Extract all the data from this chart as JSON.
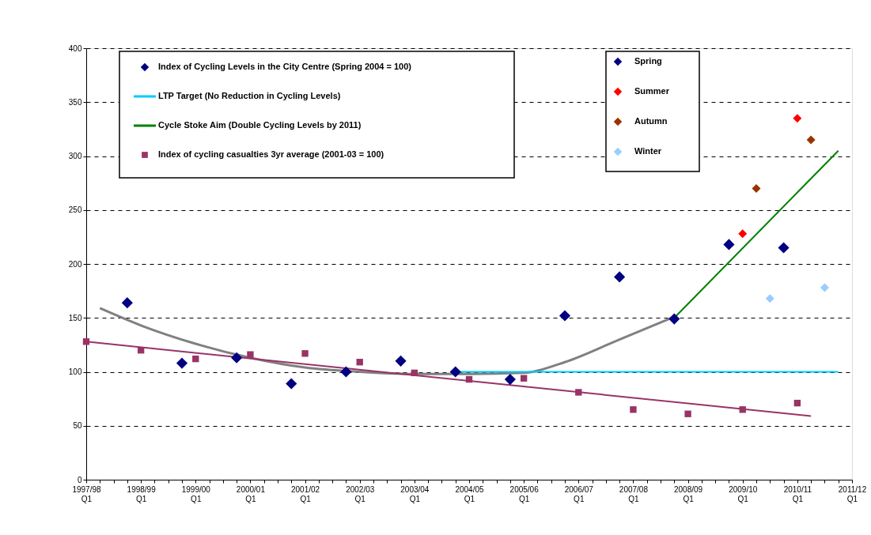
{
  "chart_data": {
    "type": "scatter",
    "categories": [
      "1997/98 Q1",
      null,
      null,
      null,
      "1998/99 Q1",
      null,
      null,
      null,
      "1999/00 Q1",
      null,
      null,
      null,
      "2000/01 Q1",
      null,
      null,
      null,
      "2001/02 Q1",
      null,
      null,
      null,
      "2002/03 Q1",
      null,
      null,
      null,
      "2003/04 Q1",
      null,
      null,
      null,
      "2004/05 Q1",
      null,
      null,
      null,
      "2005/06 Q1",
      null,
      null,
      null,
      "2006/07 Q1",
      null,
      null,
      null,
      "2007/08 Q1",
      null,
      null,
      null,
      "2008/09 Q1",
      null,
      null,
      null,
      "2009/10 Q1",
      null,
      null,
      null,
      "2010/11 Q1",
      null,
      null,
      null,
      "2011/12 Q1"
    ],
    "ylim": [
      0,
      400
    ],
    "yticks": [
      0,
      50,
      100,
      150,
      200,
      250,
      300,
      350,
      400
    ],
    "grid": "y",
    "legend": "top",
    "series": [
      {
        "name": "Index of Cycling Levels in the City Centre (Spring 2004 = 100)",
        "marker": "diamond",
        "color": "#000080",
        "values": [
          null,
          null,
          null,
          164,
          null,
          null,
          null,
          108,
          null,
          null,
          null,
          113,
          null,
          null,
          null,
          89,
          null,
          null,
          null,
          100,
          null,
          null,
          null,
          110,
          null,
          null,
          null,
          100,
          null,
          null,
          null,
          93,
          null,
          null,
          null,
          152,
          null,
          null,
          null,
          188,
          null,
          null,
          null,
          149,
          null,
          null,
          null,
          null,
          null,
          null,
          null,
          null,
          null,
          null,
          null,
          null,
          null
        ]
      },
      {
        "name": "LTP Target (No Reduction in Cycling Levels)",
        "type": "line",
        "marker": "none",
        "color": "#00ccff",
        "values": [
          null,
          null,
          null,
          null,
          null,
          null,
          null,
          null,
          null,
          null,
          null,
          null,
          null,
          null,
          null,
          null,
          null,
          null,
          null,
          null,
          null,
          null,
          null,
          null,
          null,
          null,
          null,
          100,
          100,
          100,
          100,
          100,
          100,
          100,
          100,
          100,
          100,
          100,
          100,
          100,
          100,
          100,
          100,
          100,
          100,
          100,
          100,
          100,
          100,
          100,
          100,
          100,
          100,
          100,
          100,
          100,
          null
        ]
      },
      {
        "name": "Cycle Stoke Aim (Double Cycling Levels by 2011)",
        "type": "line",
        "marker": "none",
        "color": "#008000",
        "values": [
          null,
          null,
          null,
          null,
          null,
          null,
          null,
          null,
          null,
          null,
          null,
          null,
          null,
          null,
          null,
          null,
          null,
          null,
          null,
          null,
          null,
          null,
          null,
          null,
          null,
          null,
          null,
          null,
          null,
          null,
          null,
          null,
          null,
          null,
          null,
          null,
          null,
          null,
          null,
          null,
          null,
          null,
          null,
          150,
          null,
          null,
          null,
          null,
          null,
          null,
          null,
          null,
          null,
          null,
          null,
          305,
          null
        ]
      },
      {
        "name": "Index of cycling casualties 3yr average (2001-03 = 100)",
        "marker": "square",
        "color": "#993366",
        "values": [
          128,
          null,
          null,
          null,
          120,
          null,
          null,
          null,
          112,
          null,
          null,
          null,
          116,
          null,
          null,
          null,
          117,
          null,
          null,
          null,
          109,
          null,
          null,
          null,
          99,
          null,
          null,
          null,
          93,
          null,
          null,
          null,
          94,
          null,
          null,
          null,
          81,
          null,
          null,
          null,
          65,
          null,
          null,
          null,
          61,
          null,
          null,
          null,
          65,
          null,
          null,
          null,
          71,
          null,
          null,
          null,
          null
        ]
      },
      {
        "type": "line",
        "marker": "none",
        "color": "#993366",
        "values": [
          128,
          null,
          null,
          null,
          null,
          null,
          null,
          null,
          null,
          null,
          null,
          null,
          null,
          null,
          null,
          null,
          null,
          null,
          null,
          null,
          null,
          null,
          null,
          null,
          null,
          null,
          null,
          null,
          null,
          null,
          null,
          null,
          null,
          null,
          null,
          null,
          null,
          null,
          null,
          null,
          null,
          null,
          null,
          null,
          null,
          null,
          null,
          null,
          null,
          null,
          null,
          null,
          null,
          59,
          null,
          null,
          null
        ]
      },
      {
        "type": "line",
        "marker": "none",
        "color": "#808080",
        "values": [
          null,
          159,
          null,
          null,
          143,
          null,
          null,
          null,
          126,
          null,
          null,
          null,
          113,
          null,
          null,
          null,
          104,
          null,
          null,
          null,
          100,
          null,
          null,
          null,
          98,
          null,
          null,
          null,
          98,
          null,
          null,
          null,
          99,
          null,
          null,
          109,
          null,
          null,
          null,
          130,
          null,
          null,
          null,
          151,
          null,
          null,
          null,
          null,
          null,
          null,
          null,
          null,
          null,
          null,
          null,
          null,
          null
        ]
      },
      {
        "name": "Spring",
        "marker": "diamond",
        "color": "#000080",
        "values": [
          null,
          null,
          null,
          null,
          null,
          null,
          null,
          null,
          null,
          null,
          null,
          null,
          null,
          null,
          null,
          null,
          null,
          null,
          null,
          null,
          null,
          null,
          null,
          null,
          null,
          null,
          null,
          null,
          null,
          null,
          null,
          null,
          null,
          null,
          null,
          null,
          null,
          null,
          null,
          null,
          null,
          null,
          null,
          null,
          null,
          null,
          null,
          218,
          null,
          null,
          null,
          215,
          null,
          null,
          null,
          null,
          null
        ]
      },
      {
        "name": "Summer",
        "marker": "diamond",
        "color": "#ff0000",
        "values": [
          null,
          null,
          null,
          null,
          null,
          null,
          null,
          null,
          null,
          null,
          null,
          null,
          null,
          null,
          null,
          null,
          null,
          null,
          null,
          null,
          null,
          null,
          null,
          null,
          null,
          null,
          null,
          null,
          null,
          null,
          null,
          null,
          null,
          null,
          null,
          null,
          null,
          null,
          null,
          null,
          null,
          null,
          null,
          null,
          null,
          null,
          null,
          null,
          228,
          null,
          null,
          null,
          335,
          null,
          null,
          null,
          null
        ]
      },
      {
        "name": "Autumn",
        "marker": "diamond",
        "color": "#993300",
        "values": [
          null,
          null,
          null,
          null,
          null,
          null,
          null,
          null,
          null,
          null,
          null,
          null,
          null,
          null,
          null,
          null,
          null,
          null,
          null,
          null,
          null,
          null,
          null,
          null,
          null,
          null,
          null,
          null,
          null,
          null,
          null,
          null,
          null,
          null,
          null,
          null,
          null,
          null,
          null,
          null,
          null,
          null,
          null,
          null,
          null,
          null,
          null,
          null,
          null,
          270,
          null,
          null,
          null,
          315,
          null,
          null,
          null
        ]
      },
      {
        "name": "Winter",
        "marker": "diamond",
        "color": "#99ccff",
        "values": [
          null,
          null,
          null,
          null,
          null,
          null,
          null,
          null,
          null,
          null,
          null,
          null,
          null,
          null,
          null,
          null,
          null,
          null,
          null,
          null,
          null,
          null,
          null,
          null,
          null,
          null,
          null,
          null,
          null,
          null,
          null,
          null,
          null,
          null,
          null,
          null,
          null,
          null,
          null,
          null,
          null,
          null,
          null,
          null,
          null,
          null,
          null,
          null,
          null,
          null,
          168,
          null,
          null,
          null,
          178,
          null,
          null
        ]
      }
    ]
  }
}
